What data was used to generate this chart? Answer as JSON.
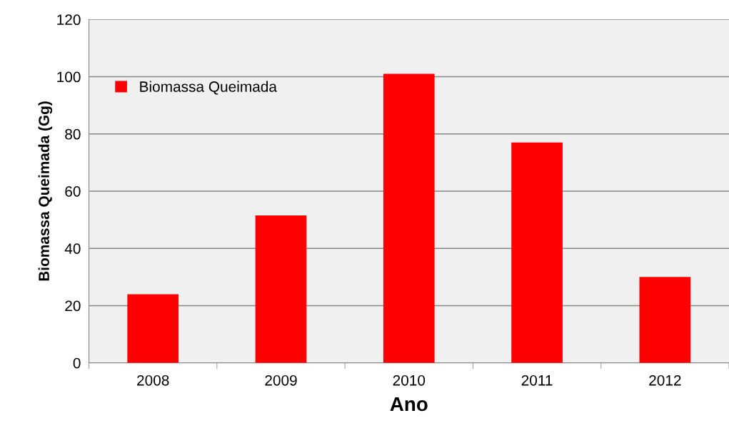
{
  "chart_data": {
    "type": "bar",
    "xlabel": "Ano",
    "ylabel": "Biomassa Queimada (Gg)",
    "categories": [
      "2008",
      "2009",
      "2010",
      "2011",
      "2012"
    ],
    "series": [
      {
        "name": "Biomassa Queimada",
        "color": "#ff0000",
        "values": [
          24,
          51.5,
          101,
          77,
          30
        ]
      }
    ],
    "ylim": [
      0,
      120
    ],
    "yticks": [
      0,
      20,
      40,
      60,
      80,
      100,
      120
    ],
    "grid": "y",
    "legend": "top left"
  }
}
